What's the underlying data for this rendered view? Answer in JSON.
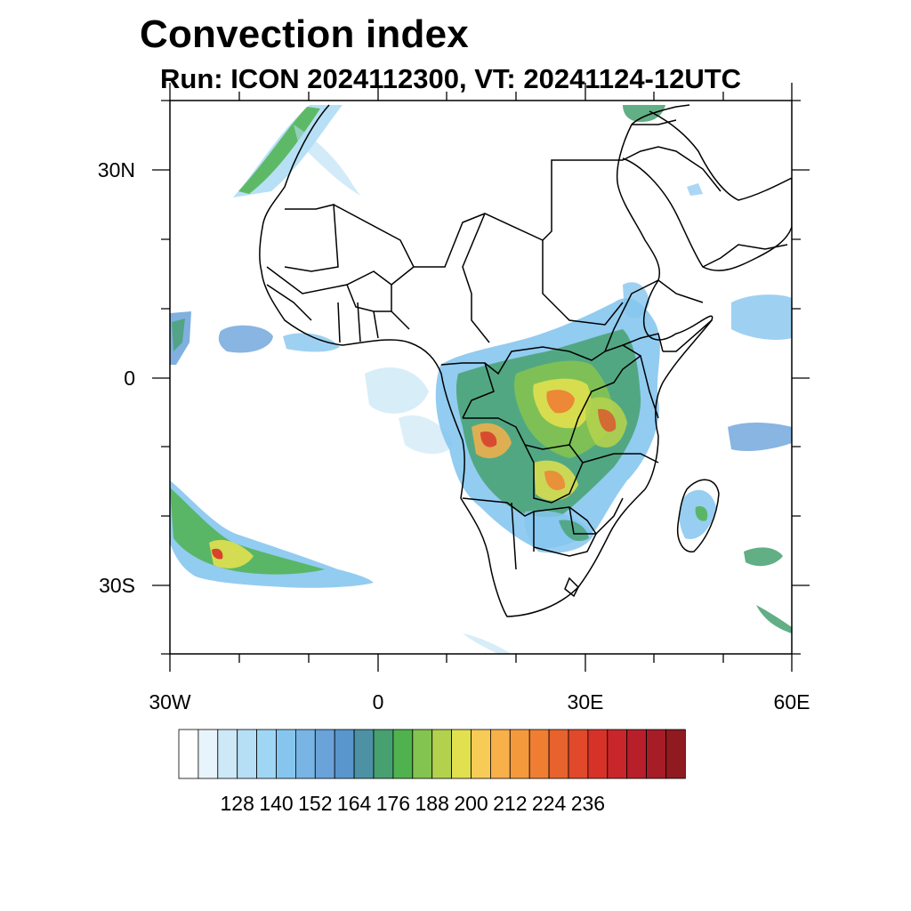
{
  "title": "Convection index",
  "subtitle": "Run: ICON 2024112300,  VT: 20241124-12UTC",
  "map": {
    "latitude_labels": [
      "30N",
      "0",
      "30S"
    ],
    "longitude_labels": [
      "30W",
      "0",
      "30E",
      "60E"
    ]
  },
  "colorbar": {
    "labels": [
      "128",
      "140",
      "152",
      "164",
      "176",
      "188",
      "200",
      "212",
      "224",
      "236"
    ],
    "colors": [
      "#ffffff",
      "#e8f4fb",
      "#cde8f6",
      "#b6def4",
      "#9fd6f4",
      "#86c6ee",
      "#78b4e4",
      "#6aa2da",
      "#5896cc",
      "#4d92a4",
      "#47a070",
      "#4fb24e",
      "#83c350",
      "#b2d24e",
      "#e1e04f",
      "#f7cb55",
      "#f7b04a",
      "#f49a3c",
      "#ef7e33",
      "#e8622d",
      "#e0492a",
      "#d73228",
      "#c8262b",
      "#b71f2a",
      "#a61c27",
      "#8f1a20"
    ]
  }
}
